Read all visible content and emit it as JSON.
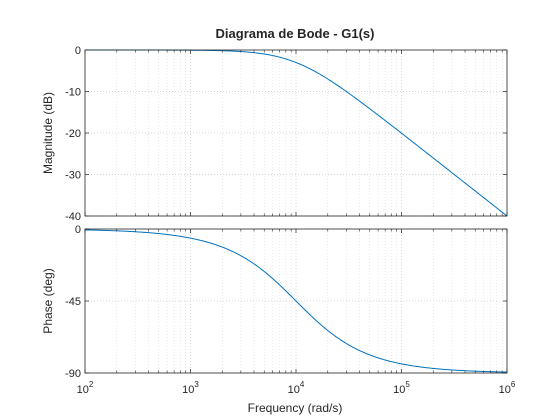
{
  "chart_data": {
    "type": "line",
    "title": "Diagrama de Bode - G1(s)",
    "xlabel": "Frequency  (rad/s)",
    "x_scale": "log",
    "xlim": [
      100,
      1000000
    ],
    "x_ticks": [
      {
        "base": "10",
        "exp": "2"
      },
      {
        "base": "10",
        "exp": "3"
      },
      {
        "base": "10",
        "exp": "4"
      },
      {
        "base": "10",
        "exp": "5"
      },
      {
        "base": "10",
        "exp": "6"
      }
    ],
    "grid": true,
    "line_color": "#0072bd",
    "panels": [
      {
        "name": "magnitude",
        "ylabel": "Magnitude (dB)",
        "ylim": [
          -40,
          0
        ],
        "y_ticks": [
          "0",
          "-10",
          "-20",
          "-30",
          "-40"
        ],
        "y_tick_values": [
          0,
          -10,
          -20,
          -30,
          -40
        ],
        "x": [
          100,
          1000,
          3000,
          10000,
          30000,
          100000,
          1000000
        ],
        "y": [
          0,
          -0.04,
          -0.4,
          -3.0,
          -10.0,
          -20.0,
          -40.0
        ]
      },
      {
        "name": "phase",
        "ylabel": "Phase (deg)",
        "ylim": [
          -90,
          0
        ],
        "y_ticks": [
          "0",
          "-45",
          "-90"
        ],
        "y_tick_values": [
          0,
          -45,
          -90
        ],
        "x": [
          100,
          1000,
          3000,
          10000,
          30000,
          100000,
          1000000
        ],
        "y": [
          -0.6,
          -5.7,
          -16.7,
          -45,
          -71.6,
          -84.3,
          -89.4
        ]
      }
    ]
  }
}
